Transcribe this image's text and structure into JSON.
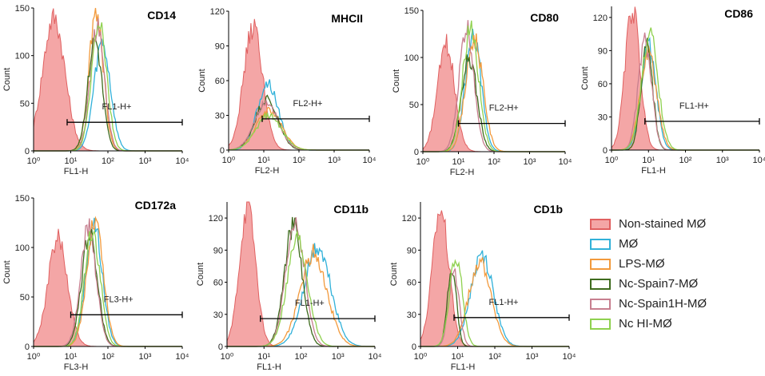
{
  "colors": {
    "nonstained_fill": "#f4a6a6",
    "nonstained_stroke": "#e06060",
    "axis": "#000000",
    "gate": "#000000"
  },
  "legend": [
    {
      "label": "Non-stained MØ",
      "color": "#e06060",
      "fill": "#f4a6a6",
      "filled": true
    },
    {
      "label": "MØ",
      "color": "#31b1d9",
      "filled": false
    },
    {
      "label": "LPS-MØ",
      "color": "#f29a3c",
      "filled": false
    },
    {
      "label": "Nc-Spain7-MØ",
      "color": "#3e6b1e",
      "filled": false
    },
    {
      "label": "Nc-Spain1H-MØ",
      "color": "#c77f8f",
      "filled": false
    },
    {
      "label": "Nc HI-MØ",
      "color": "#8fd14f",
      "filled": false
    }
  ],
  "chart_data": [
    {
      "type": "area",
      "title": "CD14",
      "xlabel": "FL1-H",
      "ylabel": "Count",
      "xscale": "log",
      "xlim": [
        1,
        10000
      ],
      "ylim": [
        0,
        150
      ],
      "yticks": [
        0,
        50,
        100,
        150
      ],
      "xticks": [
        "10⁰",
        "10¹",
        "10²",
        "10³",
        "10⁴"
      ],
      "gate": {
        "label": "FL1-H+",
        "range": [
          8,
          10000
        ],
        "y": 30
      },
      "series": [
        {
          "name": "Non-stained MØ",
          "peak_x": 3.5,
          "peak_y": 140,
          "width": 0.3
        },
        {
          "name": "MØ",
          "peak_x": 70,
          "peak_y": 113,
          "width": 0.22
        },
        {
          "name": "LPS-MØ",
          "peak_x": 48,
          "peak_y": 148,
          "width": 0.19
        },
        {
          "name": "Nc-Spain7-MØ",
          "peak_x": 45,
          "peak_y": 117,
          "width": 0.19
        },
        {
          "name": "Nc-Spain1H-MØ",
          "peak_x": 52,
          "peak_y": 128,
          "width": 0.19
        },
        {
          "name": "Nc HI-MØ",
          "peak_x": 58,
          "peak_y": 136,
          "width": 0.2
        }
      ]
    },
    {
      "type": "area",
      "title": "MHCII",
      "xlabel": "FL2-H",
      "ylabel": "Count",
      "xscale": "log",
      "xlim": [
        1,
        10000
      ],
      "ylim": [
        0,
        120
      ],
      "yticks": [
        0,
        30,
        60,
        90,
        120
      ],
      "xticks": [
        "10⁰",
        "10¹",
        "10²",
        "10³",
        "10⁴"
      ],
      "gate": {
        "label": "FL2-H+",
        "range": [
          9,
          10000
        ],
        "y": 27
      },
      "series": [
        {
          "name": "Non-stained MØ",
          "peak_x": 5,
          "peak_y": 106,
          "width": 0.27
        },
        {
          "name": "MØ",
          "peak_x": 13,
          "peak_y": 58,
          "width": 0.3
        },
        {
          "name": "LPS-MØ",
          "peak_x": 14,
          "peak_y": 34,
          "width": 0.36
        },
        {
          "name": "Nc-Spain7-MØ",
          "peak_x": 12,
          "peak_y": 44,
          "width": 0.32
        },
        {
          "name": "Nc-Spain1H-MØ",
          "peak_x": 12,
          "peak_y": 40,
          "width": 0.34
        },
        {
          "name": "Nc HI-MØ",
          "peak_x": 14,
          "peak_y": 30,
          "width": 0.36
        }
      ]
    },
    {
      "type": "area",
      "title": "CD80",
      "xlabel": "FL2-H",
      "ylabel": "Count",
      "xscale": "log",
      "xlim": [
        1,
        10000
      ],
      "ylim": [
        0,
        150
      ],
      "yticks": [
        0,
        50,
        100,
        150
      ],
      "xticks": [
        "10⁰",
        "10¹",
        "10²",
        "10³",
        "10⁴"
      ],
      "gate": {
        "label": "FL2-H+",
        "range": [
          10,
          10000
        ],
        "y": 30
      },
      "series": [
        {
          "name": "Non-stained MØ",
          "peak_x": 4.5,
          "peak_y": 114,
          "width": 0.24
        },
        {
          "name": "MØ",
          "peak_x": 26,
          "peak_y": 125,
          "width": 0.22
        },
        {
          "name": "LPS-MØ",
          "peak_x": 28,
          "peak_y": 120,
          "width": 0.24
        },
        {
          "name": "Nc-Spain7-MØ",
          "peak_x": 20,
          "peak_y": 100,
          "width": 0.22
        },
        {
          "name": "Nc-Spain1H-MØ",
          "peak_x": 17,
          "peak_y": 131,
          "width": 0.21
        },
        {
          "name": "Nc HI-MØ",
          "peak_x": 22,
          "peak_y": 135,
          "width": 0.22
        }
      ]
    },
    {
      "type": "area",
      "title": "CD86",
      "xlabel": "FL1-H",
      "ylabel": "Count",
      "xscale": "log",
      "xlim": [
        1,
        10000
      ],
      "ylim": [
        0,
        130
      ],
      "yticks": [
        0,
        30,
        60,
        90,
        120
      ],
      "xticks": [
        "10⁰",
        "10¹",
        "10²",
        "10³",
        "10⁴"
      ],
      "gate": {
        "label": "FL1-H+",
        "range": [
          8,
          10000
        ],
        "y": 26
      },
      "series": [
        {
          "name": "Non-stained MØ",
          "peak_x": 3.7,
          "peak_y": 128,
          "width": 0.2
        },
        {
          "name": "MØ",
          "peak_x": 10,
          "peak_y": 94,
          "width": 0.2
        },
        {
          "name": "LPS-MØ",
          "peak_x": 10,
          "peak_y": 88,
          "width": 0.22
        },
        {
          "name": "Nc-Spain7-MØ",
          "peak_x": 9,
          "peak_y": 93,
          "width": 0.16
        },
        {
          "name": "Nc-Spain1H-MØ",
          "peak_x": 8,
          "peak_y": 98,
          "width": 0.18
        },
        {
          "name": "Nc HI-MØ",
          "peak_x": 11,
          "peak_y": 105,
          "width": 0.22
        }
      ]
    },
    {
      "type": "area",
      "title": "CD172a",
      "xlabel": "FL3-H",
      "ylabel": "Count",
      "xscale": "log",
      "xlim": [
        1,
        10000
      ],
      "ylim": [
        0,
        150
      ],
      "yticks": [
        0,
        50,
        100,
        150
      ],
      "xticks": [
        "10⁰",
        "10¹",
        "10²",
        "10³",
        "10⁴"
      ],
      "gate": {
        "label": "FL3-H+",
        "range": [
          10,
          10000
        ],
        "y": 32
      },
      "series": [
        {
          "name": "Non-stained MØ",
          "peak_x": 4.5,
          "peak_y": 110,
          "width": 0.26
        },
        {
          "name": "MØ",
          "peak_x": 42,
          "peak_y": 124,
          "width": 0.22
        },
        {
          "name": "LPS-MØ",
          "peak_x": 45,
          "peak_y": 128,
          "width": 0.22
        },
        {
          "name": "Nc-Spain7-MØ",
          "peak_x": 32,
          "peak_y": 114,
          "width": 0.21
        },
        {
          "name": "Nc-Spain1H-MØ",
          "peak_x": 30,
          "peak_y": 120,
          "width": 0.21
        },
        {
          "name": "Nc HI-MØ",
          "peak_x": 38,
          "peak_y": 118,
          "width": 0.21
        }
      ]
    },
    {
      "type": "area",
      "title": "CD11b",
      "xlabel": "FL1-H",
      "ylabel": "Count",
      "xscale": "log",
      "xlim": [
        1,
        10000
      ],
      "ylim": [
        0,
        135
      ],
      "yticks": [
        0,
        30,
        60,
        90,
        120
      ],
      "xticks": [
        "10⁰",
        "10¹",
        "10²",
        "10³",
        "10⁴"
      ],
      "gate": {
        "label": "FL1-H+",
        "range": [
          8,
          10000
        ],
        "y": 26
      },
      "series": [
        {
          "name": "Non-stained MØ",
          "peak_x": 3.6,
          "peak_y": 130,
          "width": 0.22
        },
        {
          "name": "MØ",
          "peak_x": 280,
          "peak_y": 92,
          "width": 0.36
        },
        {
          "name": "LPS-MØ",
          "peak_x": 220,
          "peak_y": 88,
          "width": 0.36
        },
        {
          "name": "Nc-Spain7-MØ",
          "peak_x": 62,
          "peak_y": 113,
          "width": 0.24
        },
        {
          "name": "Nc-Spain1H-MØ",
          "peak_x": 70,
          "peak_y": 117,
          "width": 0.25
        },
        {
          "name": "Nc HI-MØ",
          "peak_x": 80,
          "peak_y": 100,
          "width": 0.28
        }
      ]
    },
    {
      "type": "area",
      "title": "CD1b",
      "xlabel": "FL1-H",
      "ylabel": "Count",
      "xscale": "log",
      "xlim": [
        1,
        10000
      ],
      "ylim": [
        0,
        135
      ],
      "yticks": [
        0,
        30,
        60,
        90,
        120
      ],
      "xticks": [
        "10⁰",
        "10¹",
        "10²",
        "10³",
        "10⁴"
      ],
      "gate": {
        "label": "FL1-H+",
        "range": [
          8,
          10000
        ],
        "y": 27
      },
      "series": [
        {
          "name": "Non-stained MØ",
          "peak_x": 3.5,
          "peak_y": 130,
          "width": 0.22
        },
        {
          "name": "MØ",
          "peak_x": 45,
          "peak_y": 86,
          "width": 0.3
        },
        {
          "name": "LPS-MØ",
          "peak_x": 40,
          "peak_y": 80,
          "width": 0.3
        },
        {
          "name": "Nc-Spain7-MØ",
          "peak_x": 7,
          "peak_y": 75,
          "width": 0.12
        },
        {
          "name": "Nc-Spain1H-MØ",
          "peak_x": 8,
          "peak_y": 70,
          "width": 0.14
        },
        {
          "name": "Nc HI-MØ",
          "peak_x": 9,
          "peak_y": 85,
          "width": 0.17
        }
      ]
    }
  ]
}
